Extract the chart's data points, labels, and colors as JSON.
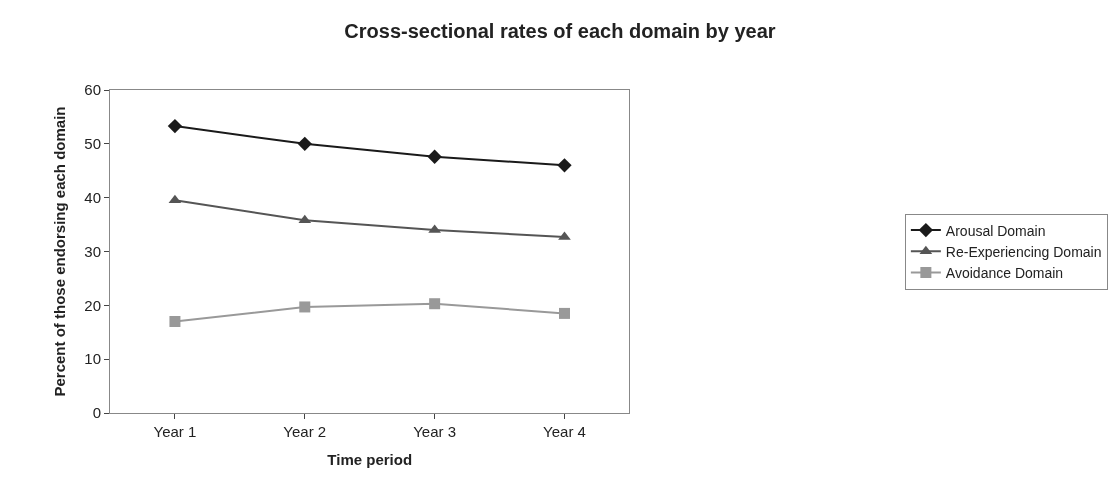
{
  "chart_data": {
    "type": "line",
    "title": "Cross-sectional rates of each domain by year",
    "xlabel": "Time period",
    "ylabel": "Percent of those endorsing each domain",
    "categories": [
      "Year 1",
      "Year 2",
      "Year 3",
      "Year 4"
    ],
    "series": [
      {
        "name": "Arousal Domain",
        "color": "#1a1a1a",
        "marker": "diamond",
        "values": [
          53.3,
          50,
          47.6,
          46
        ]
      },
      {
        "name": "Re-Experiencing Domain",
        "color": "#555555",
        "marker": "triangle",
        "values": [
          39.5,
          35.8,
          34,
          32.7
        ]
      },
      {
        "name": "Avoidance Domain",
        "color": "#999999",
        "marker": "square",
        "values": [
          17,
          19.7,
          20.3,
          18.5
        ]
      }
    ],
    "ylim": [
      0,
      60
    ],
    "yticks": [
      0,
      10,
      20,
      30,
      40,
      50,
      60
    ],
    "legend": "right"
  }
}
